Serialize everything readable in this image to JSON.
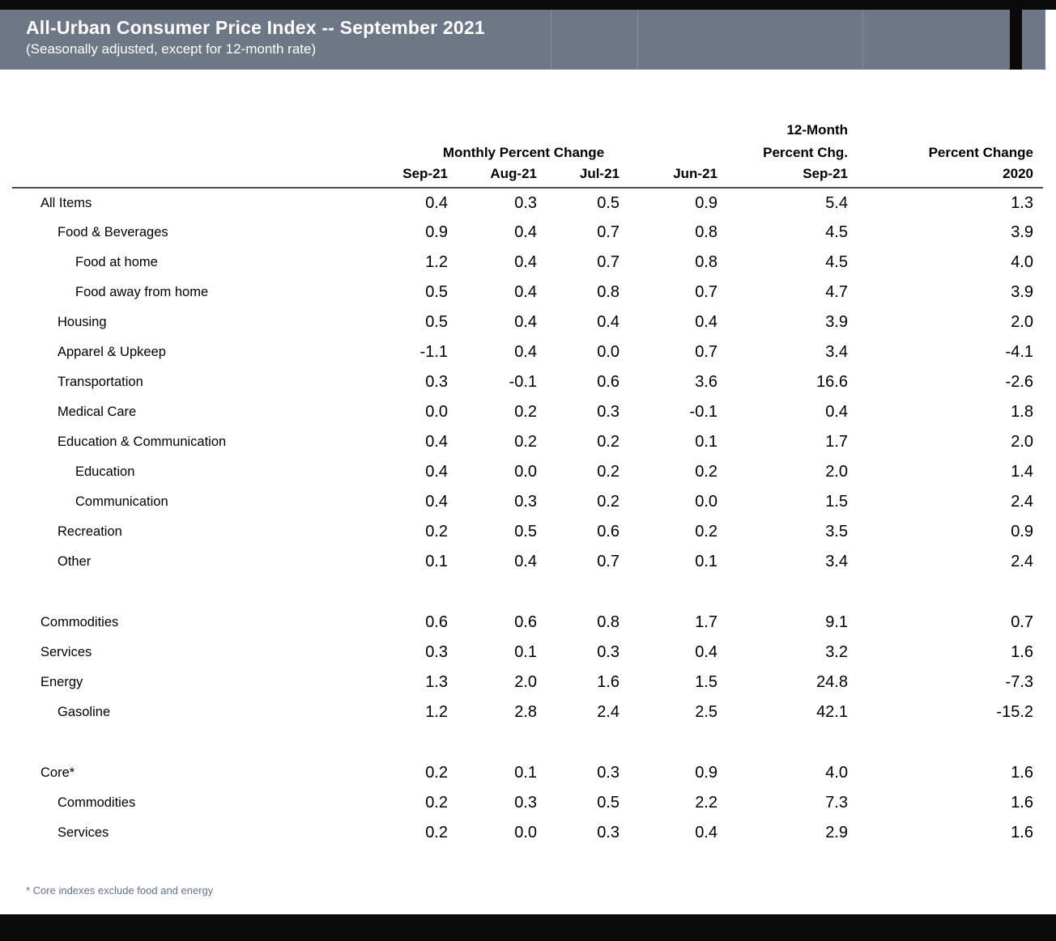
{
  "header": {
    "title": "All-Urban Consumer Price Index -- September 2021",
    "subtitle": "(Seasonally adjusted, except for 12-month rate)"
  },
  "colors": {
    "header_bg": "#6e7786",
    "header_text": "#ffffff",
    "rule": "#4d4d4d",
    "footnote_text": "#62708e",
    "bar": "#0b0b0b"
  },
  "chart_data": {
    "type": "table",
    "title": "All-Urban Consumer Price Index -- September 2021",
    "header": {
      "monthly_group": "Monthly Percent Change",
      "twelve_month_line1": "12-Month",
      "twelve_month_line2": "Percent Chg.",
      "annual_group": "Percent Change"
    },
    "columns": [
      "Sep-21",
      "Aug-21",
      "Jul-21",
      "Jun-21",
      "Sep-21",
      "2020"
    ],
    "rows": [
      {
        "label": "All Items",
        "indent": 0,
        "values": [
          "0.4",
          "0.3",
          "0.5",
          "0.9",
          "5.4",
          "1.3"
        ]
      },
      {
        "label": "Food & Beverages",
        "indent": 1,
        "values": [
          "0.9",
          "0.4",
          "0.7",
          "0.8",
          "4.5",
          "3.9"
        ]
      },
      {
        "label": "Food at home",
        "indent": 2,
        "values": [
          "1.2",
          "0.4",
          "0.7",
          "0.8",
          "4.5",
          "4.0"
        ]
      },
      {
        "label": "Food away from home",
        "indent": 2,
        "values": [
          "0.5",
          "0.4",
          "0.8",
          "0.7",
          "4.7",
          "3.9"
        ]
      },
      {
        "label": "Housing",
        "indent": 1,
        "values": [
          "0.5",
          "0.4",
          "0.4",
          "0.4",
          "3.9",
          "2.0"
        ]
      },
      {
        "label": "Apparel & Upkeep",
        "indent": 1,
        "values": [
          "-1.1",
          "0.4",
          "0.0",
          "0.7",
          "3.4",
          "-4.1"
        ]
      },
      {
        "label": "Transportation",
        "indent": 1,
        "values": [
          "0.3",
          "-0.1",
          "0.6",
          "3.6",
          "16.6",
          "-2.6"
        ]
      },
      {
        "label": "Medical Care",
        "indent": 1,
        "values": [
          "0.0",
          "0.2",
          "0.3",
          "-0.1",
          "0.4",
          "1.8"
        ]
      },
      {
        "label": "Education & Communication",
        "indent": 1,
        "values": [
          "0.4",
          "0.2",
          "0.2",
          "0.1",
          "1.7",
          "2.0"
        ]
      },
      {
        "label": "Education",
        "indent": 2,
        "values": [
          "0.4",
          "0.0",
          "0.2",
          "0.2",
          "2.0",
          "1.4"
        ]
      },
      {
        "label": "Communication",
        "indent": 2,
        "values": [
          "0.4",
          "0.3",
          "0.2",
          "0.0",
          "1.5",
          "2.4"
        ]
      },
      {
        "label": "Recreation",
        "indent": 1,
        "values": [
          "0.2",
          "0.5",
          "0.6",
          "0.2",
          "3.5",
          "0.9"
        ]
      },
      {
        "label": "Other",
        "indent": 1,
        "values": [
          "0.1",
          "0.4",
          "0.7",
          "0.1",
          "3.4",
          "2.4"
        ]
      },
      {
        "spacer": true
      },
      {
        "label": "Commodities",
        "indent": 0,
        "values": [
          "0.6",
          "0.6",
          "0.8",
          "1.7",
          "9.1",
          "0.7"
        ]
      },
      {
        "label": "Services",
        "indent": 0,
        "values": [
          "0.3",
          "0.1",
          "0.3",
          "0.4",
          "3.2",
          "1.6"
        ]
      },
      {
        "label": "Energy",
        "indent": 0,
        "values": [
          "1.3",
          "2.0",
          "1.6",
          "1.5",
          "24.8",
          "-7.3"
        ]
      },
      {
        "label": "Gasoline",
        "indent": 1,
        "values": [
          "1.2",
          "2.8",
          "2.4",
          "2.5",
          "42.1",
          "-15.2"
        ]
      },
      {
        "spacer": true
      },
      {
        "label": "Core*",
        "indent": 0,
        "values": [
          "0.2",
          "0.1",
          "0.3",
          "0.9",
          "4.0",
          "1.6"
        ]
      },
      {
        "label": "Commodities",
        "indent": 1,
        "values": [
          "0.2",
          "0.3",
          "0.5",
          "2.2",
          "7.3",
          "1.6"
        ]
      },
      {
        "label": "Services",
        "indent": 1,
        "values": [
          "0.2",
          "0.0",
          "0.3",
          "0.4",
          "2.9",
          "1.6"
        ]
      }
    ],
    "footnote": "* Core indexes exclude food and energy"
  }
}
